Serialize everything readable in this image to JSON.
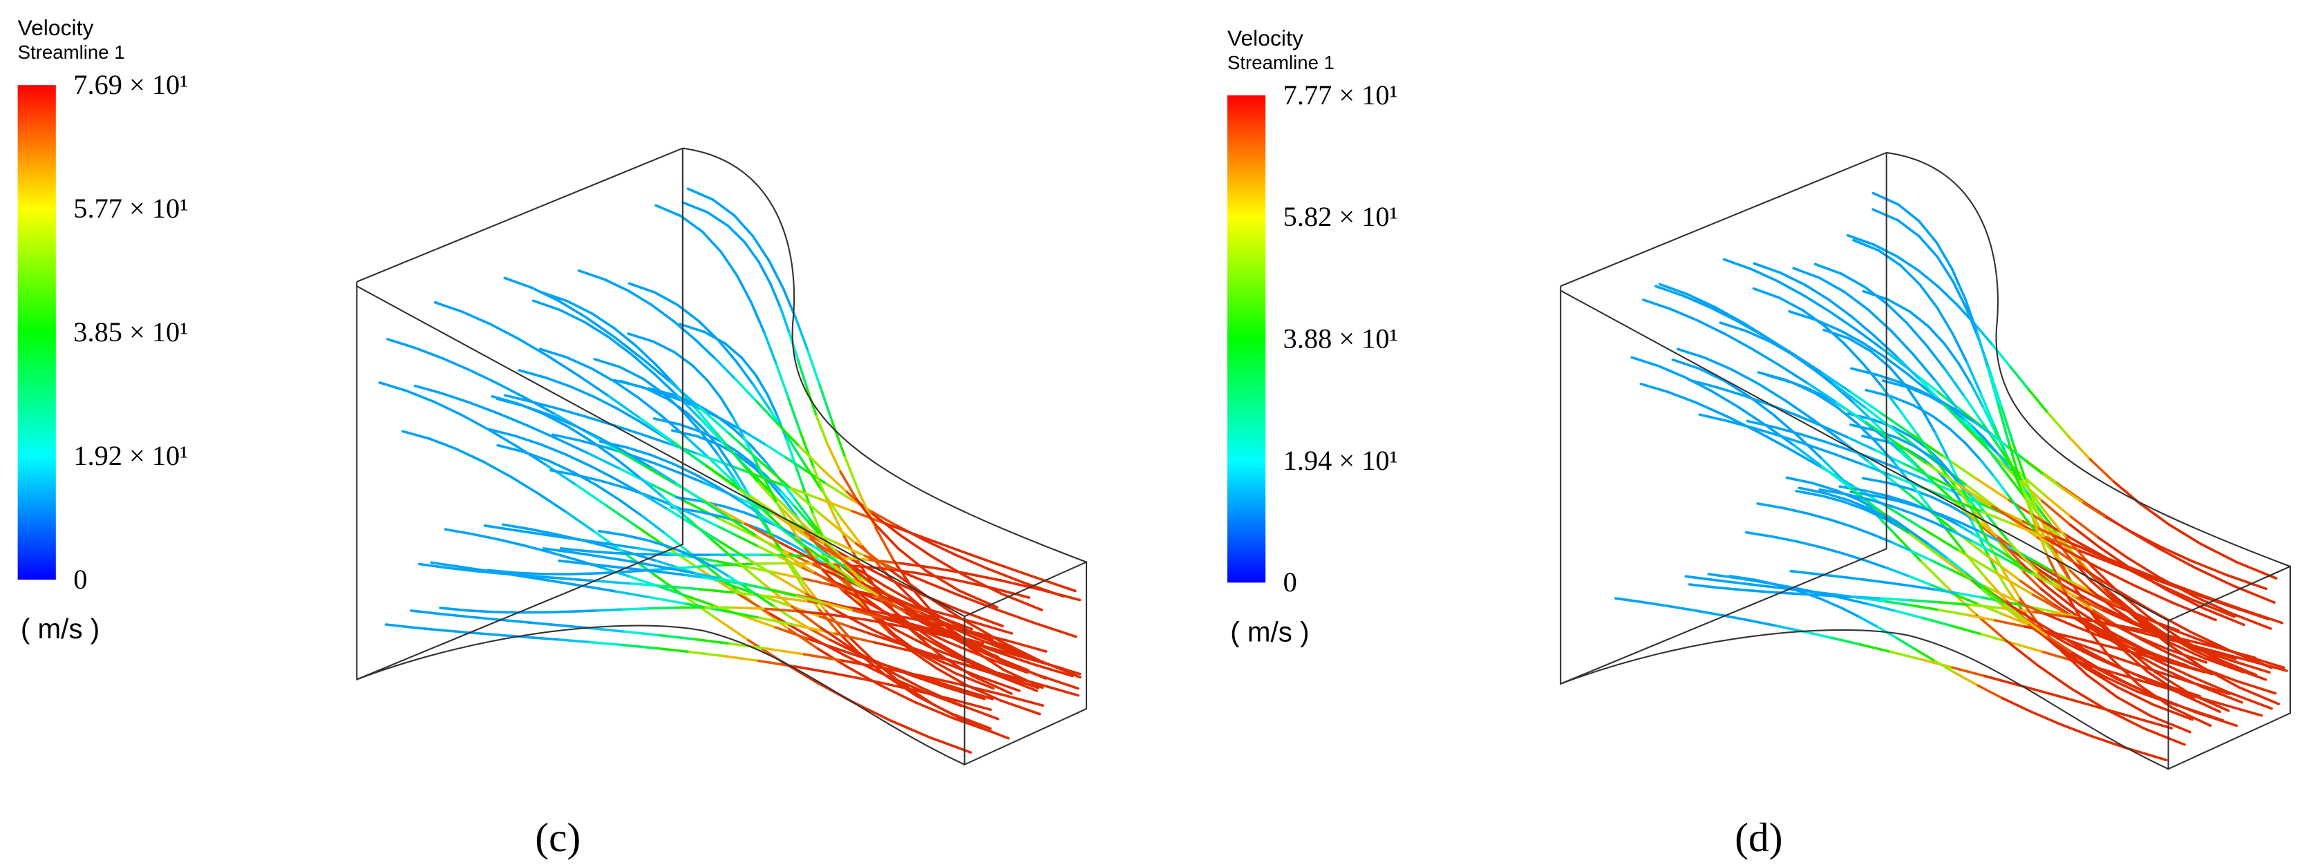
{
  "panels": [
    {
      "legend": {
        "title": "Velocity",
        "subtitle": "Streamline 1",
        "ticks": [
          "7.69 × 10¹",
          "5.77 × 10¹",
          "3.85 × 10¹",
          "1.92 × 10¹",
          "0"
        ],
        "unit": "( m/s )"
      },
      "caption": "(c)"
    },
    {
      "legend": {
        "title": "Velocity",
        "subtitle": "Streamline 1",
        "ticks": [
          "7.77 × 10¹",
          "5.82 × 10¹",
          "3.88 × 10¹",
          "1.94 × 10¹",
          "0"
        ],
        "unit": "( m/s )"
      },
      "caption": "(d)"
    }
  ]
}
